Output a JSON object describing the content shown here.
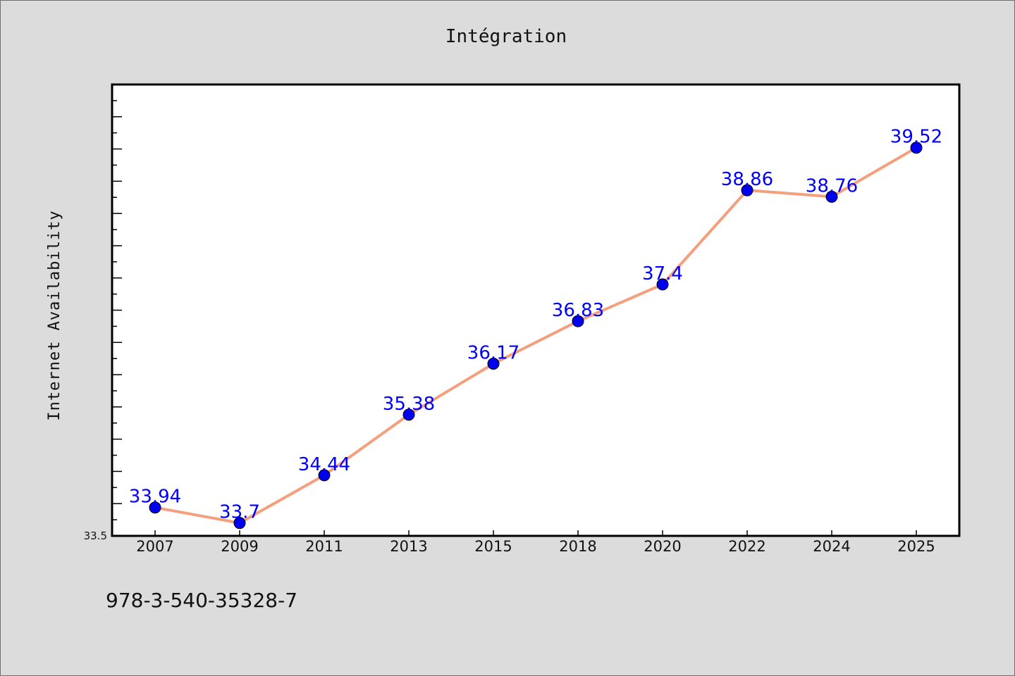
{
  "chart_data": {
    "type": "line",
    "title": "Intégration",
    "xlabel": "",
    "ylabel": "Internet Availability",
    "categories": [
      "2007",
      "2009",
      "2011",
      "2013",
      "2015",
      "2018",
      "2020",
      "2022",
      "2024",
      "2025"
    ],
    "series": [
      {
        "values": [
          33.94,
          33.7,
          34.44,
          35.38,
          36.17,
          36.83,
          37.4,
          38.86,
          38.76,
          39.52
        ],
        "data_labels": [
          "33.94",
          "33.7",
          "34.44",
          "35.38",
          "36.17",
          "36.83",
          "37.4",
          "38.86",
          "38.76",
          "39.52"
        ],
        "line_color": "#f4a07e",
        "marker_color": "#0000ee"
      }
    ],
    "ylim": [
      33.5,
      40.5
    ],
    "y_tick_label": "33.5",
    "grid": false,
    "legend": "none",
    "label_color": "#0000ff"
  },
  "footnote": "978-3-540-35328-7"
}
